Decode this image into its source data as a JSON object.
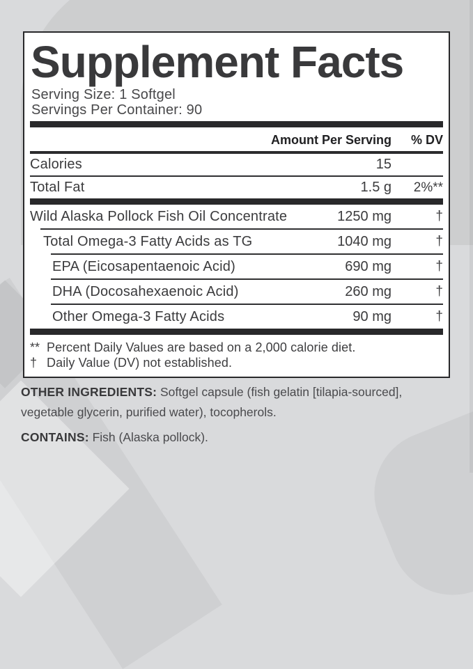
{
  "panel": {
    "title": "Supplement Facts",
    "serving_size": "Serving Size: 1 Softgel",
    "servings_per_container": "Servings Per Container: 90",
    "header": {
      "amount": "Amount Per Serving",
      "dv": "% DV"
    },
    "rows": [
      {
        "label": "Calories",
        "amount": "15",
        "dv": "",
        "indent": 0
      },
      {
        "label": "Total Fat",
        "amount": "1.5 g",
        "dv": "2%**",
        "indent": 0
      },
      {
        "label": "Wild Alaska Pollock Fish Oil Concentrate",
        "amount": "1250 mg",
        "dv": "†",
        "indent": 0
      },
      {
        "label": "Total Omega-3 Fatty Acids as TG",
        "amount": "1040 mg",
        "dv": "†",
        "indent": 1
      },
      {
        "label": "EPA (Eicosapentaenoic Acid)",
        "amount": "690 mg",
        "dv": "†",
        "indent": 2
      },
      {
        "label": "DHA (Docosahexaenoic Acid)",
        "amount": "260 mg",
        "dv": "†",
        "indent": 2
      },
      {
        "label": "Other Omega-3 Fatty Acids",
        "amount": "90 mg",
        "dv": "†",
        "indent": 2
      }
    ],
    "footnotes": [
      {
        "symbol": "**",
        "text": "Percent Daily Values are based on a 2,000 calorie diet."
      },
      {
        "symbol": "†",
        "text": "Daily Value (DV) not established."
      }
    ]
  },
  "below_panel": {
    "other_ingredients_label": "OTHER INGREDIENTS:",
    "other_ingredients_text": " Softgel capsule (fish gelatin [tilapia-sourced], vegetable glycerin, purified water), tocopherols.",
    "contains_label": "CONTAINS:",
    "contains_text": " Fish (Alaska pollock)."
  },
  "colors": {
    "page_background": "#d9dadc",
    "panel_background": "#ffffff",
    "panel_border": "#28282a",
    "rule": "#303032",
    "thick_bar": "#29292b",
    "text": "#3b3b3d"
  }
}
